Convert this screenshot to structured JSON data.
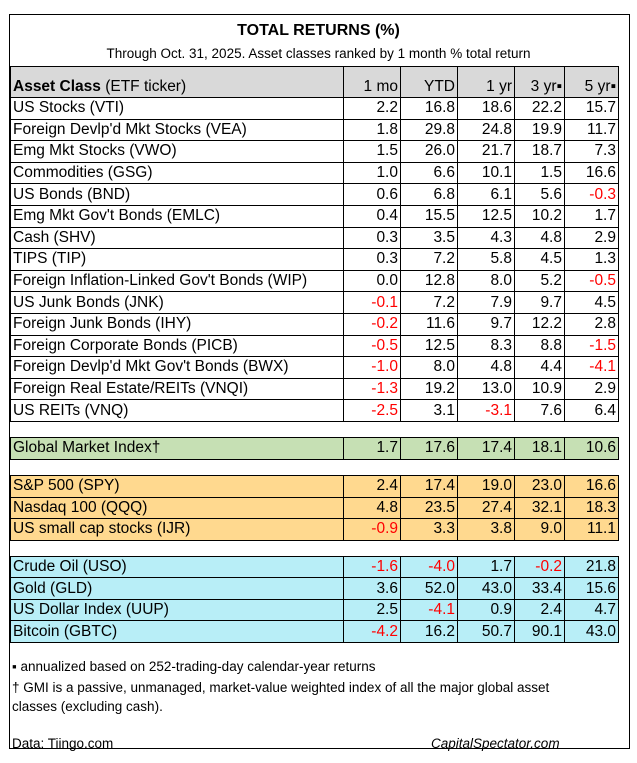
{
  "title": "TOTAL RETURNS (%)",
  "subtitle": "Through Oct. 31, 2025. Asset classes ranked by 1 month % total return",
  "header": {
    "asset_bold": "Asset Class",
    "asset_rest": " (ETF ticker)",
    "cols": [
      "1 mo",
      "YTD",
      "1 yr",
      "3 yr▪",
      "5 yr▪"
    ]
  },
  "colors": {
    "header": "#d9d9d9",
    "gmi": "#c6e0b4",
    "equity_index": "#ffd98f",
    "commodities_fx": "#b8eef7",
    "negative": "#ff0000"
  },
  "groups": [
    {
      "style": "plain",
      "rows": [
        {
          "name": "US Stocks (VTI)",
          "v": [
            "2.2",
            "16.8",
            "18.6",
            "22.2",
            "15.7"
          ]
        },
        {
          "name": "Foreign Devlp'd Mkt Stocks (VEA)",
          "v": [
            "1.8",
            "29.8",
            "24.8",
            "19.9",
            "11.7"
          ]
        },
        {
          "name": "Emg Mkt Stocks (VWO)",
          "v": [
            "1.5",
            "26.0",
            "21.7",
            "18.7",
            "7.3"
          ]
        },
        {
          "name": "Commodities (GSG)",
          "v": [
            "1.0",
            "6.6",
            "10.1",
            "1.5",
            "16.6"
          ]
        },
        {
          "name": "US Bonds (BND)",
          "v": [
            "0.6",
            "6.8",
            "6.1",
            "5.6",
            "-0.3"
          ]
        },
        {
          "name": "Emg Mkt Gov't Bonds (EMLC)",
          "v": [
            "0.4",
            "15.5",
            "12.5",
            "10.2",
            "1.7"
          ]
        },
        {
          "name": "Cash (SHV)",
          "v": [
            "0.3",
            "3.5",
            "4.3",
            "4.8",
            "2.9"
          ]
        },
        {
          "name": "TIPS (TIP)",
          "v": [
            "0.3",
            "7.2",
            "5.8",
            "4.5",
            "1.3"
          ]
        },
        {
          "name": "Foreign Inflation-Linked Gov't Bonds (WIP)",
          "v": [
            "0.0",
            "12.8",
            "8.0",
            "5.2",
            "-0.5"
          ]
        },
        {
          "name": "US Junk Bonds (JNK)",
          "v": [
            "-0.1",
            "7.2",
            "7.9",
            "9.7",
            "4.5"
          ]
        },
        {
          "name": "Foreign Junk Bonds (IHY)",
          "v": [
            "-0.2",
            "11.6",
            "9.7",
            "12.2",
            "2.8"
          ]
        },
        {
          "name": "Foreign Corporate Bonds (PICB)",
          "v": [
            "-0.5",
            "12.5",
            "8.3",
            "8.8",
            "-1.5"
          ]
        },
        {
          "name": "Foreign Devlp'd Mkt Gov't Bonds (BWX)",
          "v": [
            "-1.0",
            "8.0",
            "4.8",
            "4.4",
            "-4.1"
          ]
        },
        {
          "name": "Foreign Real Estate/REITs (VNQI)",
          "v": [
            "-1.3",
            "19.2",
            "13.0",
            "10.9",
            "2.9"
          ]
        },
        {
          "name": "US REITs (VNQ)",
          "v": [
            "-2.5",
            "3.1",
            "-3.1",
            "7.6",
            "6.4"
          ]
        }
      ]
    },
    {
      "style": "g",
      "rows": [
        {
          "name": "Global Market Index†",
          "v": [
            "1.7",
            "17.6",
            "17.4",
            "18.1",
            "10.6"
          ]
        }
      ]
    },
    {
      "style": "o",
      "rows": [
        {
          "name": "S&P 500 (SPY)",
          "v": [
            "2.4",
            "17.4",
            "19.0",
            "23.0",
            "16.6"
          ]
        },
        {
          "name": "Nasdaq 100 (QQQ)",
          "v": [
            "4.8",
            "23.5",
            "27.4",
            "32.1",
            "18.3"
          ]
        },
        {
          "name": "US small cap stocks (IJR)",
          "v": [
            "-0.9",
            "3.3",
            "3.8",
            "9.0",
            "11.1"
          ]
        }
      ]
    },
    {
      "style": "c",
      "rows": [
        {
          "name": "Crude Oil (USO)",
          "v": [
            "-1.6",
            "-4.0",
            "1.7",
            "-0.2",
            "21.8"
          ]
        },
        {
          "name": "Gold (GLD)",
          "v": [
            "3.6",
            "52.0",
            "43.0",
            "33.4",
            "15.6"
          ]
        },
        {
          "name": "US Dollar Index (UUP)",
          "v": [
            "2.5",
            "-4.1",
            "0.9",
            "2.4",
            "4.7"
          ]
        },
        {
          "name": "Bitcoin (GBTC)",
          "v": [
            "-4.2",
            "16.2",
            "50.7",
            "90.1",
            "43.0"
          ]
        }
      ]
    }
  ],
  "footnotes": {
    "annualized": "▪ annualized based on 252-trading-day calendar-year returns",
    "gmi_line1": "† GMI is a passive, unmanaged, market-value weighted index of all the major global asset",
    "gmi_line2": "classes (excluding cash)."
  },
  "source_left": "Data: Tiingo.com",
  "source_right": "CapitalSpectator.com"
}
